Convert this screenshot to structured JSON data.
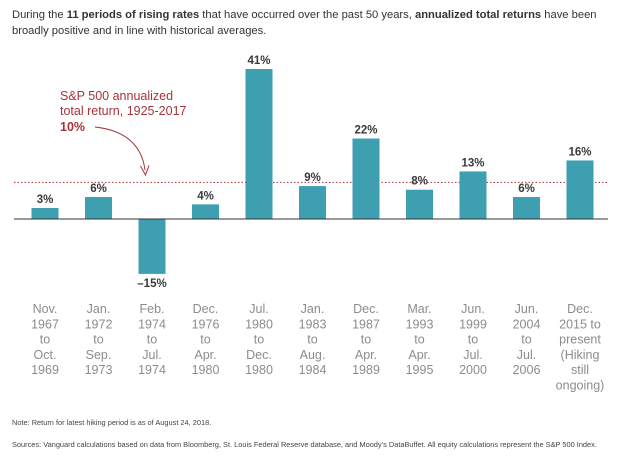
{
  "intro": {
    "p1": "During the ",
    "b1": "11 periods of rising rates",
    "p2": " that have occurred over the past 50 years, ",
    "b2": "annualized total returns",
    "p3": " have been broadly positive and in line with historical averages."
  },
  "chart_data": {
    "type": "bar",
    "title": "",
    "xlabel": "",
    "ylabel": "",
    "categories": [
      [
        "Nov.",
        "1967",
        "to",
        "Oct.",
        "1969"
      ],
      [
        "Jan.",
        "1972",
        "to",
        "Sep.",
        "1973"
      ],
      [
        "Feb.",
        "1974",
        "to",
        "Jul.",
        "1974"
      ],
      [
        "Dec.",
        "1976",
        "to",
        "Apr.",
        "1980"
      ],
      [
        "Jul.",
        "1980",
        "to",
        "Dec.",
        "1980"
      ],
      [
        "Jan.",
        "1983",
        "to",
        "Aug.",
        "1984"
      ],
      [
        "Dec.",
        "1987",
        "to",
        "Apr.",
        "1989"
      ],
      [
        "Mar.",
        "1993",
        "to",
        "Apr.",
        "1995"
      ],
      [
        "Jun.",
        "1999",
        "to",
        "Jul.",
        "2000"
      ],
      [
        "Jun.",
        "2004",
        "to",
        "Jul.",
        "2006"
      ],
      [
        "Dec.",
        "2015 to",
        "present",
        "(Hiking",
        "still",
        "ongoing)"
      ]
    ],
    "values": [
      3,
      6,
      -15,
      4,
      41,
      9,
      22,
      8,
      13,
      6,
      16
    ],
    "value_labels": [
      "3%",
      "6%",
      "–15%",
      "4%",
      "41%",
      "9%",
      "22%",
      "8%",
      "13%",
      "6%",
      "16%"
    ],
    "reference_line": {
      "value": 10,
      "label_lines": [
        "S&P 500 annualized",
        "total return, 1925-2017"
      ],
      "value_label": "10%"
    },
    "ylim": [
      -15,
      41
    ],
    "grid": false,
    "legend": "none",
    "colors": {
      "bar": "#3d9fb0",
      "reference": "#a6333a",
      "axis": "#333333",
      "category_text": "#8c8c8c",
      "value_text": "#3a3a3a"
    }
  },
  "notes": {
    "note1": "Note: Return for latest hiking period is as of August 24, 2018.",
    "note2": "Sources: Vanguard calculations based on data from Bloomberg, St. Louis Federal Reserve database, and Moody’s DataBuffet. All equity calculations represent the S&P 500 Index."
  }
}
